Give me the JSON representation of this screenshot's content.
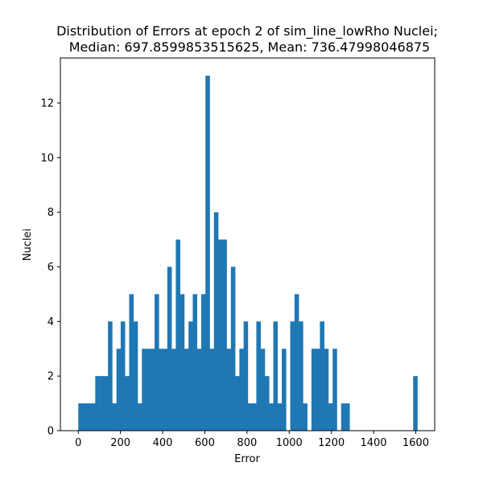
{
  "chart_data": {
    "type": "bar",
    "title_line1": "Distribution of Errors at epoch 2 of sim_line_lowRho Nuclei;",
    "title_line2": "Median: 697.8599853515625, Mean: 736.47998046875",
    "xlabel": "Error",
    "ylabel": "Nuclei",
    "xlim": [
      -85,
      1690
    ],
    "ylim": [
      0,
      13.65
    ],
    "x_ticks": [
      0,
      200,
      400,
      600,
      800,
      1000,
      1200,
      1400,
      1600
    ],
    "y_ticks": [
      0,
      2,
      4,
      6,
      8,
      10,
      12
    ],
    "bar_color": "#1f77b4",
    "bin_start": 0,
    "bin_width": 20.1,
    "values": [
      1,
      1,
      1,
      1,
      2,
      2,
      2,
      4,
      1,
      3,
      4,
      2,
      5,
      4,
      1,
      3,
      3,
      3,
      5,
      3,
      3,
      6,
      3,
      7,
      5,
      3,
      4,
      5,
      3,
      5,
      13,
      3,
      8,
      7,
      7,
      3,
      6,
      2,
      3,
      4,
      1,
      1,
      4,
      3,
      2,
      1,
      4,
      1,
      3,
      0,
      4,
      5,
      4,
      1,
      0,
      3,
      3,
      4,
      3,
      1,
      3,
      0,
      1,
      1,
      0,
      0,
      0,
      0,
      0,
      0,
      0,
      0,
      0,
      0,
      0,
      0,
      0,
      0,
      0,
      2
    ],
    "grid": false,
    "legend": "none"
  }
}
